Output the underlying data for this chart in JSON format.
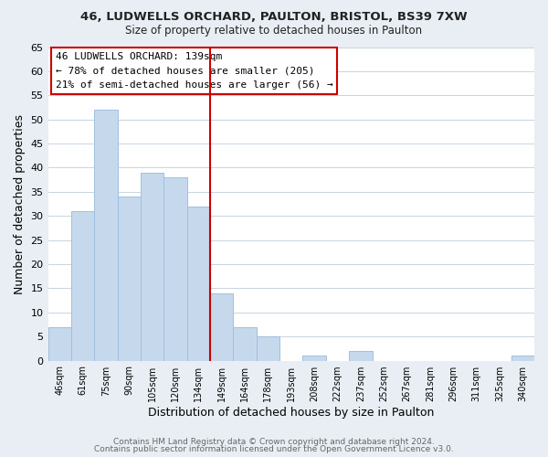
{
  "title1": "46, LUDWELLS ORCHARD, PAULTON, BRISTOL, BS39 7XW",
  "title2": "Size of property relative to detached houses in Paulton",
  "xlabel": "Distribution of detached houses by size in Paulton",
  "ylabel": "Number of detached properties",
  "bar_labels": [
    "46sqm",
    "61sqm",
    "75sqm",
    "90sqm",
    "105sqm",
    "120sqm",
    "134sqm",
    "149sqm",
    "164sqm",
    "178sqm",
    "193sqm",
    "208sqm",
    "222sqm",
    "237sqm",
    "252sqm",
    "267sqm",
    "281sqm",
    "296sqm",
    "311sqm",
    "325sqm",
    "340sqm"
  ],
  "bar_heights": [
    7,
    31,
    52,
    34,
    39,
    38,
    32,
    14,
    7,
    5,
    0,
    1,
    0,
    2,
    0,
    0,
    0,
    0,
    0,
    0,
    1
  ],
  "bar_color": "#c6d9ec",
  "bar_edge_color": "#a0bee0",
  "highlight_index": 6,
  "vline_color": "#cc0000",
  "ylim": [
    0,
    65
  ],
  "yticks": [
    0,
    5,
    10,
    15,
    20,
    25,
    30,
    35,
    40,
    45,
    50,
    55,
    60,
    65
  ],
  "annotation_title": "46 LUDWELLS ORCHARD: 139sqm",
  "annotation_line1": "← 78% of detached houses are smaller (205)",
  "annotation_line2": "21% of semi-detached houses are larger (56) →",
  "annotation_box_color": "#ffffff",
  "annotation_box_edge": "#cc0000",
  "footer1": "Contains HM Land Registry data © Crown copyright and database right 2024.",
  "footer2": "Contains public sector information licensed under the Open Government Licence v3.0.",
  "background_color": "#e8eef4",
  "plot_background": "#ffffff",
  "grid_color": "#c8d4e0"
}
